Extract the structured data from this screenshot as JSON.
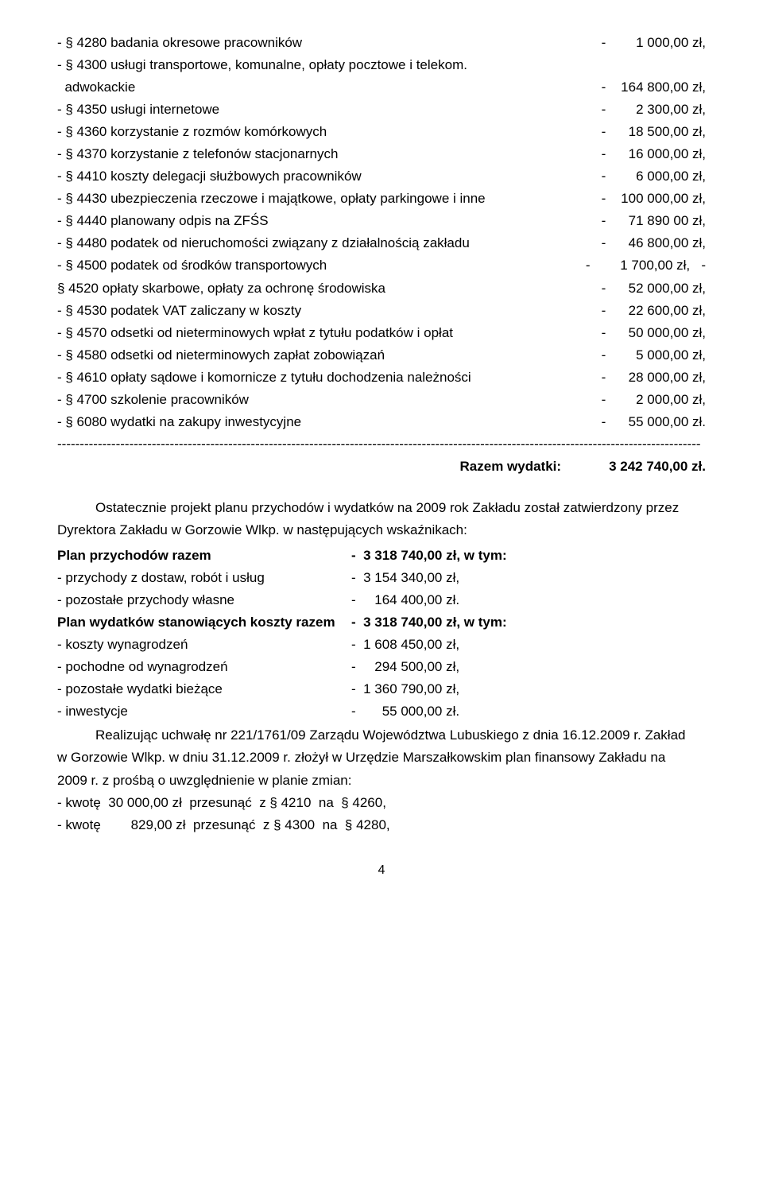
{
  "items": [
    {
      "label": "- § 4280 badania okresowe pracowników",
      "val": "-        1 000,00 zł,"
    },
    {
      "label": "- § 4300 usługi transportowe, komunalne, opłaty pocztowe i telekom.",
      "val": ""
    },
    {
      "label": "  adwokackie",
      "val": "-    164 800,00 zł,"
    },
    {
      "label": "- § 4350 usługi internetowe",
      "val": "-        2 300,00 zł,"
    },
    {
      "label": "- § 4360 korzystanie z rozmów komórkowych",
      "val": "-      18 500,00 zł,"
    },
    {
      "label": "- § 4370 korzystanie z telefonów stacjonarnych",
      "val": "-      16 000,00 zł,"
    },
    {
      "label": "- § 4410 koszty delegacji służbowych pracowników",
      "val": "-        6 000,00 zł,"
    },
    {
      "label": "- § 4430 ubezpieczenia rzeczowe i majątkowe, opłaty parkingowe i inne",
      "val": "-    100 000,00 zł,"
    },
    {
      "label": "- § 4440 planowany odpis na ZFŚS",
      "val": "-      71 890 00 zł,"
    },
    {
      "label": "- § 4480 podatek od nieruchomości związany z działalnością zakładu",
      "val": "-      46 800,00 zł,"
    },
    {
      "label": "- § 4500 podatek od środków transportowych",
      "val": "-        1 700,00 zł,   -"
    },
    {
      "label": "§ 4520 opłaty skarbowe, opłaty za ochronę środowiska",
      "val": "-      52 000,00 zł,"
    },
    {
      "label": "- § 4530 podatek VAT zaliczany w koszty",
      "val": "-      22 600,00 zł,"
    },
    {
      "label": "- § 4570 odsetki od nieterminowych wpłat z tytułu podatków i opłat",
      "val": "-      50 000,00 zł,"
    },
    {
      "label": "- § 4580 odsetki od nieterminowych zapłat zobowiązań",
      "val": "-        5 000,00 zł,"
    },
    {
      "label": "- § 4610 opłaty sądowe i komornicze z tytułu dochodzenia należności",
      "val": "-      28 000,00 zł,"
    },
    {
      "label": "- § 4700 szkolenie pracowników",
      "val": "-        2 000,00 zł,"
    },
    {
      "label": "- § 6080 wydatki na zakupy inwestycyjne",
      "val": "-      55 000,00 zł."
    }
  ],
  "dashline": "-----------------------------------------------------------------------------------------------------------------------------------------------",
  "razem_label": "Razem wydatki:",
  "razem_val": "3 242 740,00 zł.",
  "para1_a": "Ostatecznie projekt planu przychodów i wydatków na 2009 rok Zakładu został zatwierdzony przez",
  "para1_b": "Dyrektora Zakładu w Gorzowie Wlkp.  w następujących wskaźnikach:",
  "kv": [
    {
      "k": "Plan przychodów  razem",
      "v": "-  3 318 740,00 zł, w tym:",
      "bold": true
    },
    {
      "k": "- przychody z dostaw, robót i usług",
      "v": "-  3 154 340,00 zł,",
      "bold": false
    },
    {
      "k": "- pozostałe przychody własne",
      "v": "-     164 400,00 zł.",
      "bold": false
    },
    {
      "k": "Plan wydatków stanowiących koszty  razem",
      "v": "-  3 318 740,00 zł, w tym:",
      "bold": true
    },
    {
      "k": "- koszty wynagrodzeń",
      "v": "-  1 608 450,00 zł,",
      "bold": false
    },
    {
      "k": "- pochodne od wynagrodzeń",
      "v": "-     294 500,00 zł,",
      "bold": false
    },
    {
      "k": "- pozostałe wydatki bieżące",
      "v": "-  1 360 790,00 zł,",
      "bold": false
    },
    {
      "k": "- inwestycje",
      "v": "-       55 000,00 zł.",
      "bold": false
    }
  ],
  "para2_a": "Realizując uchwałę nr 221/1761/09 Zarządu Województwa Lubuskiego z dnia 16.12.2009 r. Zakład",
  "para2_b": "w Gorzowie Wlkp.  w dniu 31.12.2009 r.  złożył w Urzędzie Marszałkowskim plan finansowy Zakładu na",
  "para2_c": "2009 r. z prośbą o uwzględnienie w planie zmian:",
  "change1": "- kwotę  30 000,00 zł  przesunąć  z § 4210  na  § 4260,",
  "change2": "- kwotę        829,00 zł  przesunąć  z § 4300  na  § 4280,",
  "pagenum": "4"
}
